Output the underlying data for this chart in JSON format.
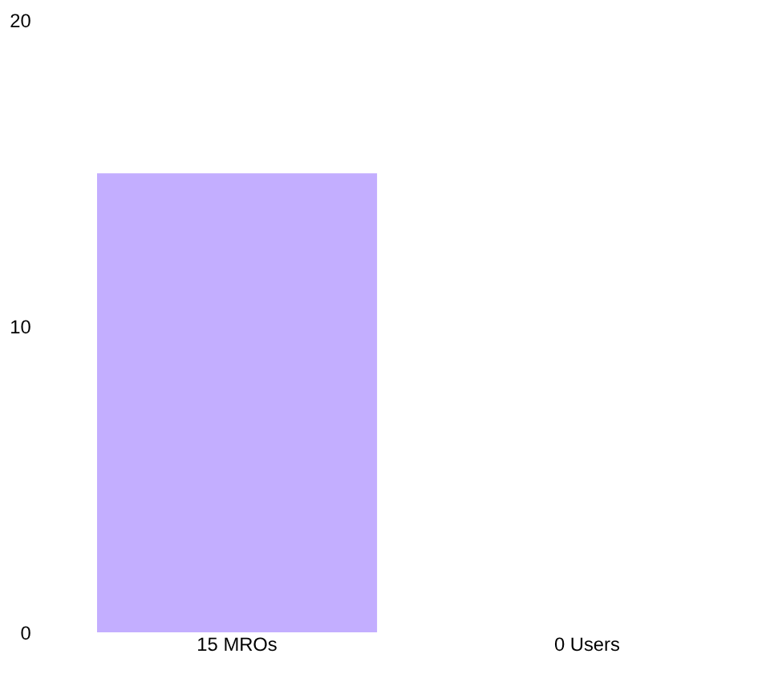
{
  "chart_data": {
    "type": "bar",
    "categories": [
      "15 MROs",
      "0 Users"
    ],
    "values": [
      15,
      0
    ],
    "color": "#c3aeff",
    "ylim": [
      0,
      20
    ],
    "yticks": [
      0,
      10,
      20
    ],
    "grid": false
  }
}
